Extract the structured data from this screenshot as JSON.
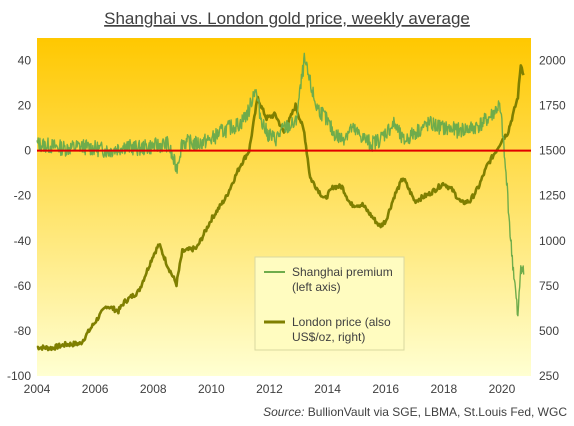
{
  "title": "Shanghai vs. London gold price, weekly average",
  "source_label": "Source:",
  "source_text": "BullionVault via SGE, LBMA, St.Louis Fed, WGC",
  "colors": {
    "premium": "#6fac4b",
    "london": "#7f7f00",
    "zero_line": "#e00000",
    "bg_top": "#ffc800",
    "bg_bottom": "#ffffd2",
    "legend_bg": "#fffcc0"
  },
  "chart_data": {
    "type": "line",
    "x_range": [
      2004,
      2021
    ],
    "x_ticks": [
      2004,
      2006,
      2008,
      2010,
      2012,
      2014,
      2016,
      2018,
      2020
    ],
    "y_left": {
      "range": [
        -100,
        50
      ],
      "ticks": [
        40,
        20,
        0,
        -20,
        -40,
        -60,
        -80,
        -100
      ]
    },
    "y_right": {
      "range": [
        250,
        2125
      ],
      "ticks": [
        2000,
        1750,
        1500,
        1250,
        1000,
        750,
        500,
        250
      ]
    },
    "grid": false,
    "legend_position": "lower-center",
    "series": [
      {
        "name": "Shanghai premium\n(left axis)",
        "axis": "left",
        "x": [
          2004,
          2004.5,
          2005,
          2005.5,
          2006,
          2006.5,
          2007,
          2007.5,
          2008,
          2008.5,
          2008.8,
          2009,
          2009.5,
          2010,
          2010.3,
          2010.6,
          2011,
          2011.3,
          2011.5,
          2011.7,
          2011.9,
          2012.2,
          2012.5,
          2012.9,
          2013.2,
          2013.4,
          2013.6,
          2013.9,
          2014.2,
          2014.5,
          2014.8,
          2015.2,
          2015.5,
          2015.8,
          2016,
          2016.3,
          2016.6,
          2017,
          2017.5,
          2018,
          2018.5,
          2019,
          2019.3,
          2019.6,
          2019.9,
          2020,
          2020.1,
          2020.2,
          2020.3,
          2020.45,
          2020.55,
          2020.65,
          2020.75
        ],
        "values": [
          3,
          2,
          1,
          2,
          1,
          0,
          2,
          1,
          2,
          3,
          -8,
          4,
          3,
          5,
          8,
          10,
          12,
          18,
          28,
          15,
          8,
          5,
          10,
          12,
          40,
          30,
          20,
          15,
          8,
          5,
          10,
          6,
          3,
          5,
          8,
          12,
          4,
          8,
          12,
          10,
          9,
          10,
          12,
          15,
          20,
          12,
          -5,
          -20,
          -40,
          -60,
          -75,
          -50,
          -55
        ]
      },
      {
        "name": "London price (also\nUS$/oz, right)",
        "axis": "right",
        "x": [
          2004,
          2004.5,
          2005,
          2005.5,
          2006,
          2006.4,
          2006.8,
          2007,
          2007.5,
          2008,
          2008.2,
          2008.5,
          2008.8,
          2009,
          2009.5,
          2010,
          2010.5,
          2011,
          2011.3,
          2011.6,
          2011.7,
          2011.9,
          2012.2,
          2012.5,
          2012.9,
          2013.2,
          2013.4,
          2013.6,
          2013.9,
          2014.2,
          2014.5,
          2014.8,
          2015.2,
          2015.5,
          2015.8,
          2016,
          2016.3,
          2016.6,
          2017,
          2017.5,
          2018,
          2018.3,
          2018.6,
          2018.9,
          2019.2,
          2019.5,
          2019.8,
          2020,
          2020.2,
          2020.4,
          2020.55,
          2020.65,
          2020.75
        ],
        "values": [
          410,
          405,
          425,
          430,
          550,
          640,
          610,
          660,
          720,
          920,
          980,
          860,
          760,
          940,
          960,
          1120,
          1240,
          1420,
          1500,
          1800,
          1750,
          1680,
          1700,
          1600,
          1750,
          1600,
          1350,
          1300,
          1230,
          1300,
          1300,
          1200,
          1200,
          1140,
          1080,
          1110,
          1250,
          1350,
          1220,
          1260,
          1320,
          1280,
          1210,
          1220,
          1300,
          1420,
          1500,
          1560,
          1600,
          1710,
          1800,
          1980,
          1920
        ]
      }
    ]
  }
}
